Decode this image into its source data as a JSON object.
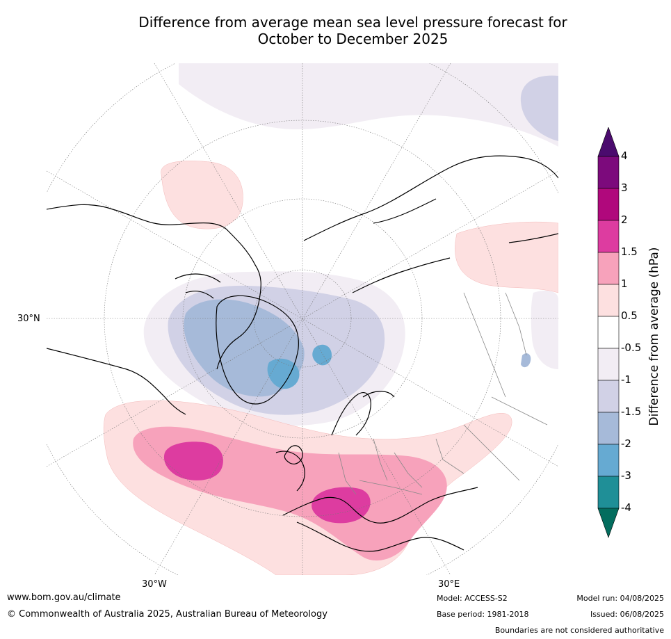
{
  "title_line1": "Difference from average mean sea level pressure forecast for",
  "title_line2": "October to December 2025",
  "map": {
    "lat_label": "30°N",
    "lon_labels": [
      "30°W",
      "30°E"
    ]
  },
  "colorbar": {
    "title": "Difference from average (hPa)",
    "labels": [
      "4",
      "3",
      "2",
      "1.5",
      "1",
      "0.5",
      "-0.5",
      "-1",
      "-1.5",
      "-2",
      "-3",
      "-4"
    ],
    "colors": [
      "#4b0b6e",
      "#7c0a7c",
      "#b0087c",
      "#dd3ca0",
      "#f7a2bb",
      "#fde0e0",
      "#ffffff",
      "#f2edf4",
      "#d1d1e6",
      "#a6bad9",
      "#66aad2",
      "#1f8f97",
      "#036d5e"
    ]
  },
  "footer": {
    "website": "www.bom.gov.au/climate",
    "copyright": "© Commonwealth of Australia 2025, Australian Bureau of Meteorology",
    "model": "Model: ACCESS-S2",
    "base_period": "Base period: 1981-2018",
    "model_run": "Model run: 04/08/2025",
    "issued": "Issued: 06/08/2025",
    "disclaimer": "Boundaries are not considered authoritative"
  }
}
